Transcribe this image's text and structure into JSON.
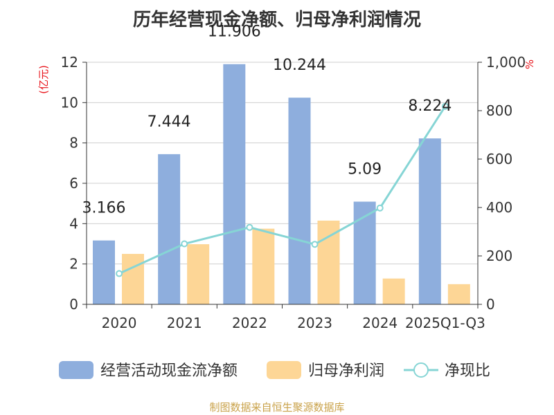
{
  "chart_data": {
    "type": "bar",
    "title": "历年经营现金净额、归母净利润情况",
    "categories": [
      "2020",
      "2021",
      "2022",
      "2023",
      "2024",
      "2025Q1-Q3"
    ],
    "series": [
      {
        "name": "经营活动现金流净额",
        "type": "bar",
        "axis": "left",
        "color": "#8eaedd",
        "values": [
          3.166,
          7.444,
          11.906,
          10.244,
          5.09,
          8.224
        ],
        "labels": [
          "3.166",
          "7.444",
          "11.906",
          "10.244",
          "5.09",
          "8.224"
        ]
      },
      {
        "name": "归母净利润",
        "type": "bar",
        "axis": "left",
        "color": "#fdd696",
        "values": [
          2.5,
          2.98,
          3.75,
          4.15,
          1.28,
          1.0
        ]
      },
      {
        "name": "净现比",
        "type": "line",
        "axis": "right",
        "color": "#86d5d5",
        "values": [
          127,
          250,
          318,
          248,
          398,
          818
        ]
      }
    ],
    "y_left": {
      "unit": "(亿元)",
      "ylim": [
        0,
        12
      ],
      "ticks": [
        "0",
        "2",
        "4",
        "6",
        "8",
        "10",
        "12"
      ]
    },
    "y_right": {
      "unit": "%",
      "ylim": [
        0,
        1000
      ],
      "ticks": [
        "0",
        "200",
        "400",
        "600",
        "800",
        "1,000"
      ]
    },
    "legend_position": "bottom",
    "grid": true
  },
  "source_text": "制图数据来自恒生聚源数据库"
}
